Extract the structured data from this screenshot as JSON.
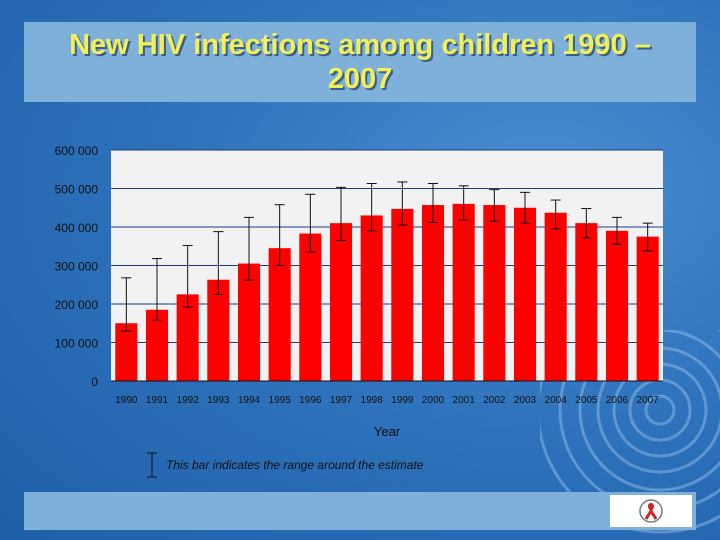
{
  "slide": {
    "title": "New HIV infections among children 1990 –2007",
    "legend_text": "This bar indicates the range around the estimate",
    "logo_icon": "unaids-ribbon-logo-icon"
  },
  "colors": {
    "background": "#2f74bd",
    "title_text": "#f1f05a",
    "panel": "#7fb0da",
    "bar": "#ff0000",
    "gridline": "#1a3a8a",
    "plot_bg": "#f2f2f2"
  },
  "chart_data": {
    "type": "bar",
    "title": "New HIV infections among children 1990 –2007",
    "xlabel": "Year",
    "ylabel": "",
    "ylim": [
      0,
      600000
    ],
    "yticks": [
      0,
      100000,
      200000,
      300000,
      400000,
      500000,
      600000
    ],
    "ytick_labels": [
      "0",
      "100 000",
      "200 000",
      "300 000",
      "400 000",
      "500 000",
      "600 000"
    ],
    "grid": true,
    "categories": [
      "1990",
      "1991",
      "1992",
      "1993",
      "1994",
      "1995",
      "1996",
      "1997",
      "1998",
      "1999",
      "2000",
      "2001",
      "2002",
      "2003",
      "2004",
      "2005",
      "2006",
      "2007"
    ],
    "values": [
      150000,
      185000,
      225000,
      263000,
      305000,
      345000,
      383000,
      410000,
      430000,
      447000,
      457000,
      460000,
      457000,
      450000,
      437000,
      410000,
      390000,
      375000
    ],
    "error_low": [
      130000,
      158000,
      192000,
      225000,
      262000,
      300000,
      335000,
      365000,
      390000,
      405000,
      412000,
      418000,
      415000,
      410000,
      395000,
      372000,
      355000,
      338000
    ],
    "error_high": [
      268000,
      318000,
      352000,
      388000,
      425000,
      458000,
      485000,
      503000,
      513000,
      517000,
      513000,
      507000,
      497000,
      490000,
      470000,
      448000,
      425000,
      410000
    ]
  }
}
